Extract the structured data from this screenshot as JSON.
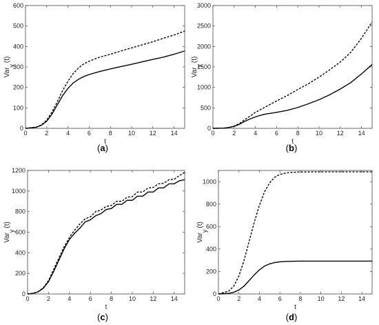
{
  "chart_data": [
    {
      "type": "line",
      "caption": {
        "open": "(",
        "letter": "a",
        "close": ")"
      },
      "xlabel": "t",
      "ylabel": {
        "main": "Var",
        "sub": "y",
        "tail": "(t)"
      },
      "xlim": [
        0,
        15
      ],
      "ylim": [
        0,
        600
      ],
      "xticks": [
        0,
        2,
        4,
        6,
        8,
        10,
        12,
        14
      ],
      "yticks": [
        0,
        100,
        200,
        300,
        400,
        500,
        600
      ],
      "grid": false,
      "series": [
        {
          "style": "solid",
          "x": [
            0,
            1,
            1.5,
            2,
            2.5,
            3,
            3.5,
            4,
            4.5,
            5,
            5.5,
            6,
            7,
            8,
            9,
            10,
            11,
            12,
            13,
            14,
            15
          ],
          "y": [
            0,
            5,
            15,
            35,
            70,
            115,
            160,
            195,
            222,
            240,
            253,
            263,
            278,
            290,
            302,
            313,
            325,
            337,
            348,
            362,
            378
          ]
        },
        {
          "style": "dashed",
          "x": [
            0,
            1,
            1.5,
            2,
            2.5,
            3,
            3.5,
            4,
            4.5,
            5,
            5.5,
            6,
            7,
            8,
            9,
            10,
            11,
            12,
            13,
            14,
            15
          ],
          "y": [
            0,
            6,
            17,
            40,
            80,
            130,
            185,
            230,
            268,
            295,
            315,
            328,
            348,
            362,
            378,
            393,
            408,
            423,
            440,
            456,
            475
          ]
        }
      ]
    },
    {
      "type": "line",
      "caption": {
        "open": "(",
        "letter": "b",
        "close": ")"
      },
      "xlabel": "t",
      "ylabel": {
        "main": "Var",
        "sub": "y",
        "tail": "(t)"
      },
      "xlim": [
        0,
        15
      ],
      "ylim": [
        0,
        3000
      ],
      "xticks": [
        0,
        2,
        4,
        6,
        8,
        10,
        12,
        14
      ],
      "yticks": [
        0,
        500,
        1000,
        1500,
        2000,
        2500,
        3000
      ],
      "grid": false,
      "series": [
        {
          "style": "solid",
          "x": [
            0,
            1,
            1.5,
            2,
            2.5,
            3,
            3.5,
            4,
            4.5,
            5,
            5.5,
            6,
            7,
            8,
            9,
            10,
            11,
            12,
            13,
            14,
            15
          ],
          "y": [
            0,
            5,
            20,
            50,
            100,
            170,
            230,
            280,
            320,
            350,
            370,
            390,
            440,
            510,
            600,
            700,
            820,
            960,
            1120,
            1330,
            1560
          ]
        },
        {
          "style": "dashed",
          "x": [
            0,
            1,
            1.5,
            2,
            2.5,
            3,
            3.5,
            4,
            4.5,
            5,
            5.5,
            6,
            7,
            8,
            9,
            10,
            11,
            12,
            13,
            14,
            15
          ],
          "y": [
            0,
            5,
            20,
            55,
            120,
            210,
            300,
            390,
            460,
            530,
            600,
            670,
            800,
            950,
            1090,
            1250,
            1430,
            1620,
            1860,
            2200,
            2600
          ]
        }
      ]
    },
    {
      "type": "line",
      "caption": {
        "open": "(",
        "letter": "c",
        "close": ")"
      },
      "xlabel": "t",
      "ylabel": {
        "main": "Var",
        "sub": "y",
        "tail": "(t)"
      },
      "xlim": [
        0,
        15
      ],
      "ylim": [
        0,
        1200
      ],
      "xticks": [
        0,
        2,
        4,
        6,
        8,
        10,
        12,
        14
      ],
      "yticks": [
        0,
        200,
        400,
        600,
        800,
        1000,
        1200
      ],
      "grid": false,
      "series": [
        {
          "style": "solid",
          "x": [
            0,
            0.5,
            1,
            1.5,
            2,
            2.5,
            3,
            3.5,
            4,
            4.5,
            5,
            5.5,
            6,
            6.5,
            7,
            7.5,
            8,
            8.5,
            9,
            9.5,
            10,
            10.5,
            11,
            11.5,
            12,
            12.5,
            13,
            13.5,
            14,
            14.5,
            15
          ],
          "y": [
            0,
            5,
            20,
            55,
            120,
            220,
            330,
            440,
            530,
            590,
            640,
            700,
            720,
            760,
            780,
            820,
            830,
            870,
            870,
            910,
            910,
            950,
            950,
            990,
            990,
            1030,
            1030,
            1070,
            1070,
            1100,
            1110
          ]
        },
        {
          "style": "dashed",
          "x": [
            0,
            0.5,
            1,
            1.5,
            2,
            2.5,
            3,
            3.5,
            4,
            4.5,
            5,
            5.5,
            6,
            6.5,
            7,
            7.5,
            8,
            8.5,
            9,
            9.5,
            10,
            10.5,
            11,
            11.5,
            12,
            12.5,
            13,
            13.5,
            14,
            14.5,
            15
          ],
          "y": [
            0,
            6,
            22,
            60,
            130,
            240,
            350,
            460,
            550,
            620,
            680,
            730,
            750,
            800,
            815,
            850,
            860,
            900,
            900,
            940,
            945,
            990,
            990,
            1030,
            1035,
            1070,
            1075,
            1110,
            1115,
            1150,
            1180
          ]
        }
      ]
    },
    {
      "type": "line",
      "caption": {
        "open": "(",
        "letter": "d",
        "close": ")"
      },
      "xlabel": "t",
      "ylabel": {
        "main": "Var",
        "sub": "y",
        "tail": "(t)"
      },
      "xlim": [
        0,
        15
      ],
      "ylim": [
        0,
        1100
      ],
      "xticks": [
        0,
        2,
        4,
        6,
        8,
        10,
        12,
        14
      ],
      "yticks": [
        0,
        200,
        400,
        600,
        800,
        1000
      ],
      "grid": false,
      "series": [
        {
          "style": "solid",
          "x": [
            0,
            1,
            1.5,
            2,
            2.5,
            3,
            3.5,
            4,
            4.5,
            5,
            5.5,
            6,
            6.5,
            7,
            8,
            9,
            10,
            12,
            15
          ],
          "y": [
            0,
            5,
            15,
            35,
            70,
            120,
            170,
            215,
            248,
            268,
            280,
            286,
            289,
            291,
            292,
            292,
            292,
            292,
            292
          ]
        },
        {
          "style": "dashed",
          "x": [
            0,
            1,
            1.5,
            2,
            2.5,
            3,
            3.5,
            4,
            4.5,
            5,
            5.5,
            6,
            6.5,
            7,
            8,
            9,
            10,
            12,
            15
          ],
          "y": [
            0,
            25,
            70,
            160,
            300,
            470,
            640,
            790,
            910,
            990,
            1040,
            1065,
            1075,
            1082,
            1086,
            1087,
            1088,
            1088,
            1088
          ]
        }
      ]
    }
  ]
}
